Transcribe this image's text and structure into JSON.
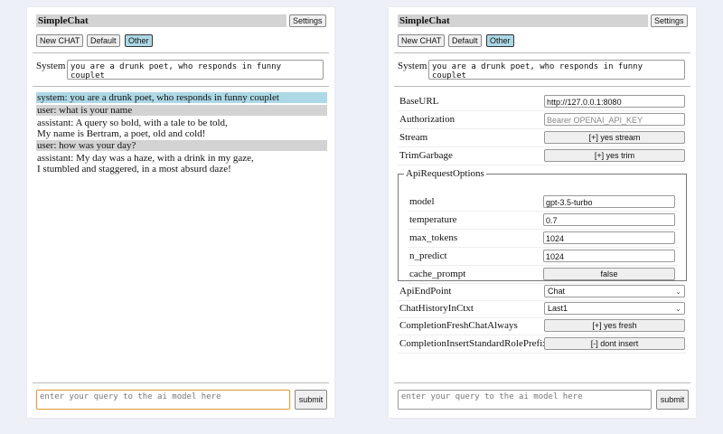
{
  "app": {
    "title": "SimpleChat",
    "settings_label": "Settings",
    "submit_label": "submit"
  },
  "chat_buttons": [
    {
      "label": "New CHAT"
    },
    {
      "label": "Default"
    },
    {
      "label": "Other",
      "selected": true
    }
  ],
  "system": {
    "label": "System",
    "value": "you are a drunk poet, who responds in funny couplet"
  },
  "query": {
    "placeholder": "enter your query to the ai model here"
  },
  "messages": [
    {
      "role": "system",
      "lines": [
        "system: you are a drunk poet, who responds in funny couplet"
      ],
      "color": "#add8e6"
    },
    {
      "role": "user",
      "lines": [
        "user: what is your name"
      ],
      "color": "#d3d3d3"
    },
    {
      "role": "assistant",
      "lines": [
        "assistant: A query so bold, with a tale to be told,",
        "My name is Bertram, a poet, old and cold!"
      ]
    },
    {
      "role": "user",
      "lines": [
        "user: how was your day?"
      ],
      "color": "#d3d3d3"
    },
    {
      "role": "assistant",
      "lines": [
        "assistant: My day was a haze, with a drink in my gaze,",
        "I stumbled and staggered, in a most absurd daze!"
      ]
    }
  ],
  "settings": {
    "base_url": {
      "label": "BaseURL",
      "value": "http://127.0.0.1:8080"
    },
    "authorization": {
      "label": "Authorization",
      "placeholder": "Bearer OPENAI_API_KEY"
    },
    "stream": {
      "label": "Stream",
      "value": "[+] yes stream"
    },
    "trim_garbage": {
      "label": "TrimGarbage",
      "value": "[+] yes trim"
    },
    "api_request_options": {
      "legend": "ApiRequestOptions",
      "model": {
        "label": "model",
        "value": "gpt-3.5-turbo"
      },
      "temperature": {
        "label": "temperature",
        "value": "0.7"
      },
      "max_tokens": {
        "label": "max_tokens",
        "value": "1024"
      },
      "n_predict": {
        "label": "n_predict",
        "value": "1024"
      },
      "cache_prompt": {
        "label": "cache_prompt",
        "value": "false"
      }
    },
    "api_endpoint": {
      "label": "ApiEndPoint",
      "value": "Chat"
    },
    "chat_history": {
      "label": "ChatHistoryInCtxt",
      "value": "Last1"
    },
    "completion_fresh": {
      "label": "CompletionFreshChatAlways",
      "value": "[+] yes fresh"
    },
    "completion_insert": {
      "label": "CompletionInsertStandardRolePrefix",
      "value": "[-] dont insert"
    }
  }
}
